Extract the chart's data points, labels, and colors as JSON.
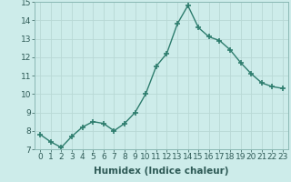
{
  "x": [
    0,
    1,
    2,
    3,
    4,
    5,
    6,
    7,
    8,
    9,
    10,
    11,
    12,
    13,
    14,
    15,
    16,
    17,
    18,
    19,
    20,
    21,
    22,
    23
  ],
  "y": [
    7.8,
    7.4,
    7.1,
    7.7,
    8.2,
    8.5,
    8.4,
    8.0,
    8.4,
    9.0,
    10.0,
    11.5,
    12.2,
    13.8,
    14.8,
    13.6,
    13.1,
    12.9,
    12.4,
    11.7,
    11.1,
    10.6,
    10.4,
    10.3
  ],
  "line_color": "#2e7d6e",
  "marker": "+",
  "marker_size": 4,
  "marker_lw": 1.2,
  "line_width": 1.0,
  "bg_color": "#cdecea",
  "grid_color": "#b8d8d5",
  "xlabel": "Humidex (Indice chaleur)",
  "ylim": [
    7,
    15
  ],
  "xlim": [
    -0.5,
    23.5
  ],
  "yticks": [
    7,
    8,
    9,
    10,
    11,
    12,
    13,
    14,
    15
  ],
  "xticks": [
    0,
    1,
    2,
    3,
    4,
    5,
    6,
    7,
    8,
    9,
    10,
    11,
    12,
    13,
    14,
    15,
    16,
    17,
    18,
    19,
    20,
    21,
    22,
    23
  ],
  "xlabel_fontsize": 7.5,
  "tick_fontsize": 6.5
}
